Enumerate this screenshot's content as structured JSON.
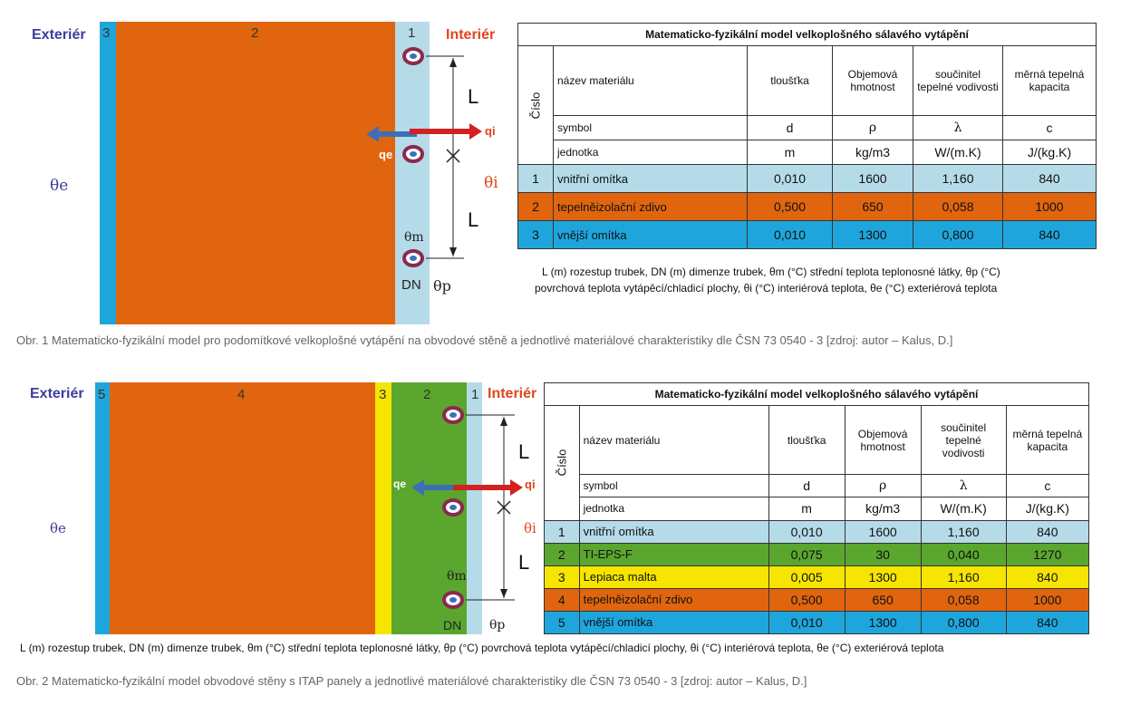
{
  "figure1": {
    "exterior_label": "Exteriér",
    "interior_label": "Interiér",
    "layer_numbers": [
      "3",
      "2",
      "1"
    ],
    "theta_e": "θe",
    "theta_i": "θi",
    "q_i": "qi",
    "q_e": "qe",
    "L1": "L",
    "L2": "L",
    "theta_m": "θm",
    "dn": "DN",
    "theta_p": "θp",
    "table": {
      "title": "Matematicko-fyzikální model velkoplošného sálavého vytápění",
      "cislo": "Číslo",
      "headers": [
        "název materiálu",
        "tloušťka",
        "Objemová hmotnost",
        "součinitel tepelné vodivosti",
        "měrná tepelná kapacita"
      ],
      "symbol_row": [
        "symbol",
        "d",
        "ρ",
        "λ",
        "c"
      ],
      "unit_row": [
        "jednotka",
        "m",
        "kg/m3",
        "W/(m.K)",
        "J/(kg.K)"
      ],
      "rows": [
        {
          "num": "1",
          "name": "vnitřní omítka",
          "d": "0,010",
          "rho": "1600",
          "lambda": "1,160",
          "c": "840"
        },
        {
          "num": "2",
          "name": "tepelněizolační zdivo",
          "d": "0,500",
          "rho": "650",
          "lambda": "0,058",
          "c": "1000"
        },
        {
          "num": "3",
          "name": "vnější omítka",
          "d": "0,010",
          "rho": "1300",
          "lambda": "0,800",
          "c": "840"
        }
      ]
    },
    "legend_line1": "L (m) rozestup trubek, DN (m) dimenze trubek, θm (°C) střední teplota teplonosné látky, θp (°C)",
    "legend_line2": "povrchová teplota vytápěcí/chladicí plochy, θi (°C) interiérová teplota, θe (°C) exteriérová teplota",
    "caption": "Obr. 1 Matematicko-fyzikální model pro podomítkové velkoplošné vytápění na obvodové stěně a jednotlivé materiálové charakteristiky dle ČSN 73 0540 - 3 [zdroj: autor – Kalus, D.]"
  },
  "figure2": {
    "exterior_label": "Exteriér",
    "interior_label": "Interiér",
    "layer_numbers": [
      "5",
      "4",
      "3",
      "2",
      "1"
    ],
    "theta_e": "θe",
    "theta_i": "θi",
    "q_i": "qi",
    "q_e": "qe",
    "L1": "L",
    "L2": "L",
    "theta_m": "θm",
    "dn": "DN",
    "theta_p": "θp",
    "table": {
      "title": "Matematicko-fyzikální model velkoplošného sálavého vytápění",
      "cislo": "Číslo",
      "headers": [
        "název materiálu",
        "tloušťka",
        "Objemová hmotnost",
        "součinitel tepelné vodivosti",
        "měrná tepelná kapacita"
      ],
      "symbol_row": [
        "symbol",
        "d",
        "ρ",
        "λ",
        "c"
      ],
      "unit_row": [
        "jednotka",
        "m",
        "kg/m3",
        "W/(m.K)",
        "J/(kg.K)"
      ],
      "rows": [
        {
          "num": "1",
          "name": "vnitřní omítka",
          "d": "0,010",
          "rho": "1600",
          "lambda": "1,160",
          "c": "840"
        },
        {
          "num": "2",
          "name": "TI-EPS-F",
          "d": "0,075",
          "rho": "30",
          "lambda": "0,040",
          "c": "1270"
        },
        {
          "num": "3",
          "name": "Lepiaca malta",
          "d": "0,005",
          "rho": "1300",
          "lambda": "1,160",
          "c": "840"
        },
        {
          "num": "4",
          "name": "tepelněizolační zdivo",
          "d": "0,500",
          "rho": "650",
          "lambda": "0,058",
          "c": "1000"
        },
        {
          "num": "5",
          "name": "vnější omítka",
          "d": "0,010",
          "rho": "1300",
          "lambda": "0,800",
          "c": "840"
        }
      ]
    },
    "legend": "L (m) rozestup trubek, DN (m) dimenze trubek, θm (°C) střední teplota teplonosné látky, θp (°C) povrchová teplota vytápěcí/chladicí plochy, θi (°C) interiérová teplota, θe (°C) exteriérová teplota",
    "caption": "Obr. 2 Matematicko-fyzikální model obvodové stěny s ITAP panely a jednotlivé materiálové charakteristiky dle ČSN 73 0540 - 3 [zdroj: autor – Kalus, D.]"
  },
  "colors": {
    "light_blue": "#b5dbe8",
    "orange": "#e0650e",
    "blue": "#1ea6dc",
    "green": "#5aa62e",
    "yellow": "#f5e500",
    "red_arrow": "#d42020",
    "blue_arrow": "#3c6fb6"
  }
}
